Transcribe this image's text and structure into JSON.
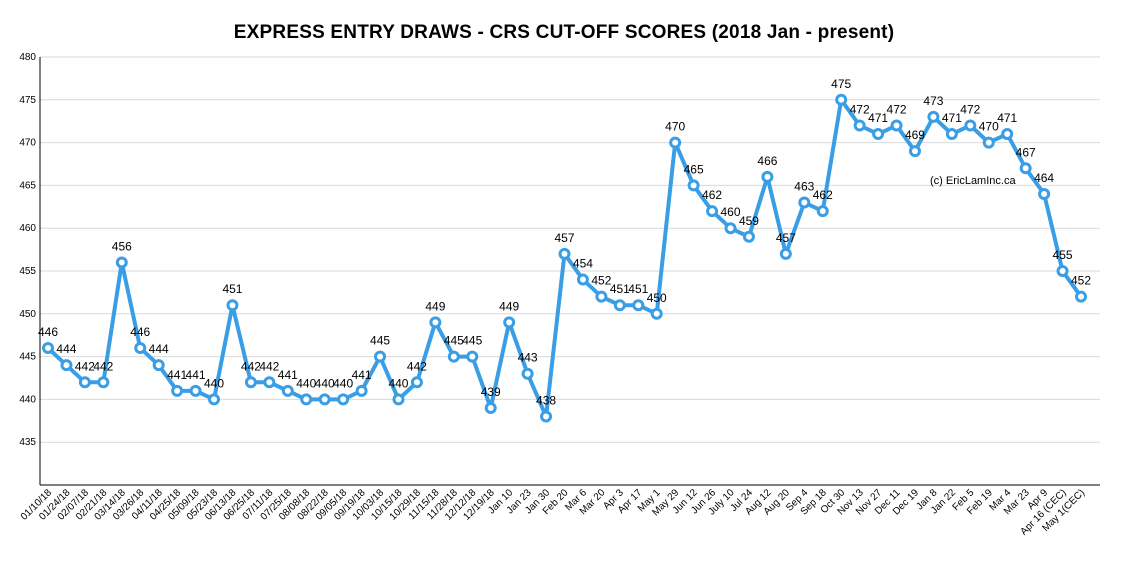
{
  "chart_data": {
    "type": "line",
    "title": "EXPRESS ENTRY DRAWS - CRS CUT-OFF SCORES (2018 Jan - present)",
    "xlabel": "",
    "ylabel": "",
    "ylim": [
      430,
      480
    ],
    "yticks": [
      435,
      440,
      445,
      450,
      455,
      460,
      465,
      470,
      475,
      480
    ],
    "grid": "horizontal",
    "watermark": "(c) EricLamInc.ca",
    "line_color": "#3a9ee6",
    "categories": [
      "01/10/18",
      "01/24/18",
      "02/07/18",
      "02/21/18",
      "03/14/18",
      "03/26/18",
      "04/11/18",
      "04/25/18",
      "05/09/18",
      "05/23/18",
      "06/13/18",
      "06/25/18",
      "07/11/18",
      "07/25/18",
      "08/08/18",
      "08/22/18",
      "09/05/18",
      "09/19/18",
      "10/03/18",
      "10/15/18",
      "10/29/18",
      "11/15/18",
      "11/28/18",
      "12/12/18",
      "12/19/18",
      "Jan 10",
      "Jan 23",
      "Jan 30",
      "Feb 20",
      "Mar 6",
      "Mar 20",
      "Apr 3",
      "Apr 17",
      "May 1",
      "May 29",
      "Jun 12",
      "Jun 26",
      "July 10",
      "Jul 24",
      "Aug 12",
      "Aug 20",
      "Sep 4",
      "Sep 18",
      "Oct 30",
      "Nov 13",
      "Nov 27",
      "Dec 11",
      "Dec 19",
      "Jan 8",
      "Jan 22",
      "Feb 5",
      "Feb 19",
      "Mar 4",
      "Mar 23",
      "Apr 9",
      "Apr 16 (CEC)",
      "May 1(CEC)"
    ],
    "values": [
      446,
      444,
      442,
      442,
      456,
      446,
      444,
      441,
      441,
      440,
      451,
      442,
      442,
      441,
      440,
      440,
      440,
      441,
      445,
      440,
      442,
      449,
      445,
      445,
      439,
      449,
      443,
      438,
      457,
      454,
      452,
      451,
      451,
      450,
      470,
      465,
      462,
      460,
      459,
      466,
      457,
      463,
      462,
      475,
      472,
      471,
      472,
      469,
      473,
      471,
      472,
      470,
      471,
      467,
      464,
      455,
      452
    ]
  }
}
